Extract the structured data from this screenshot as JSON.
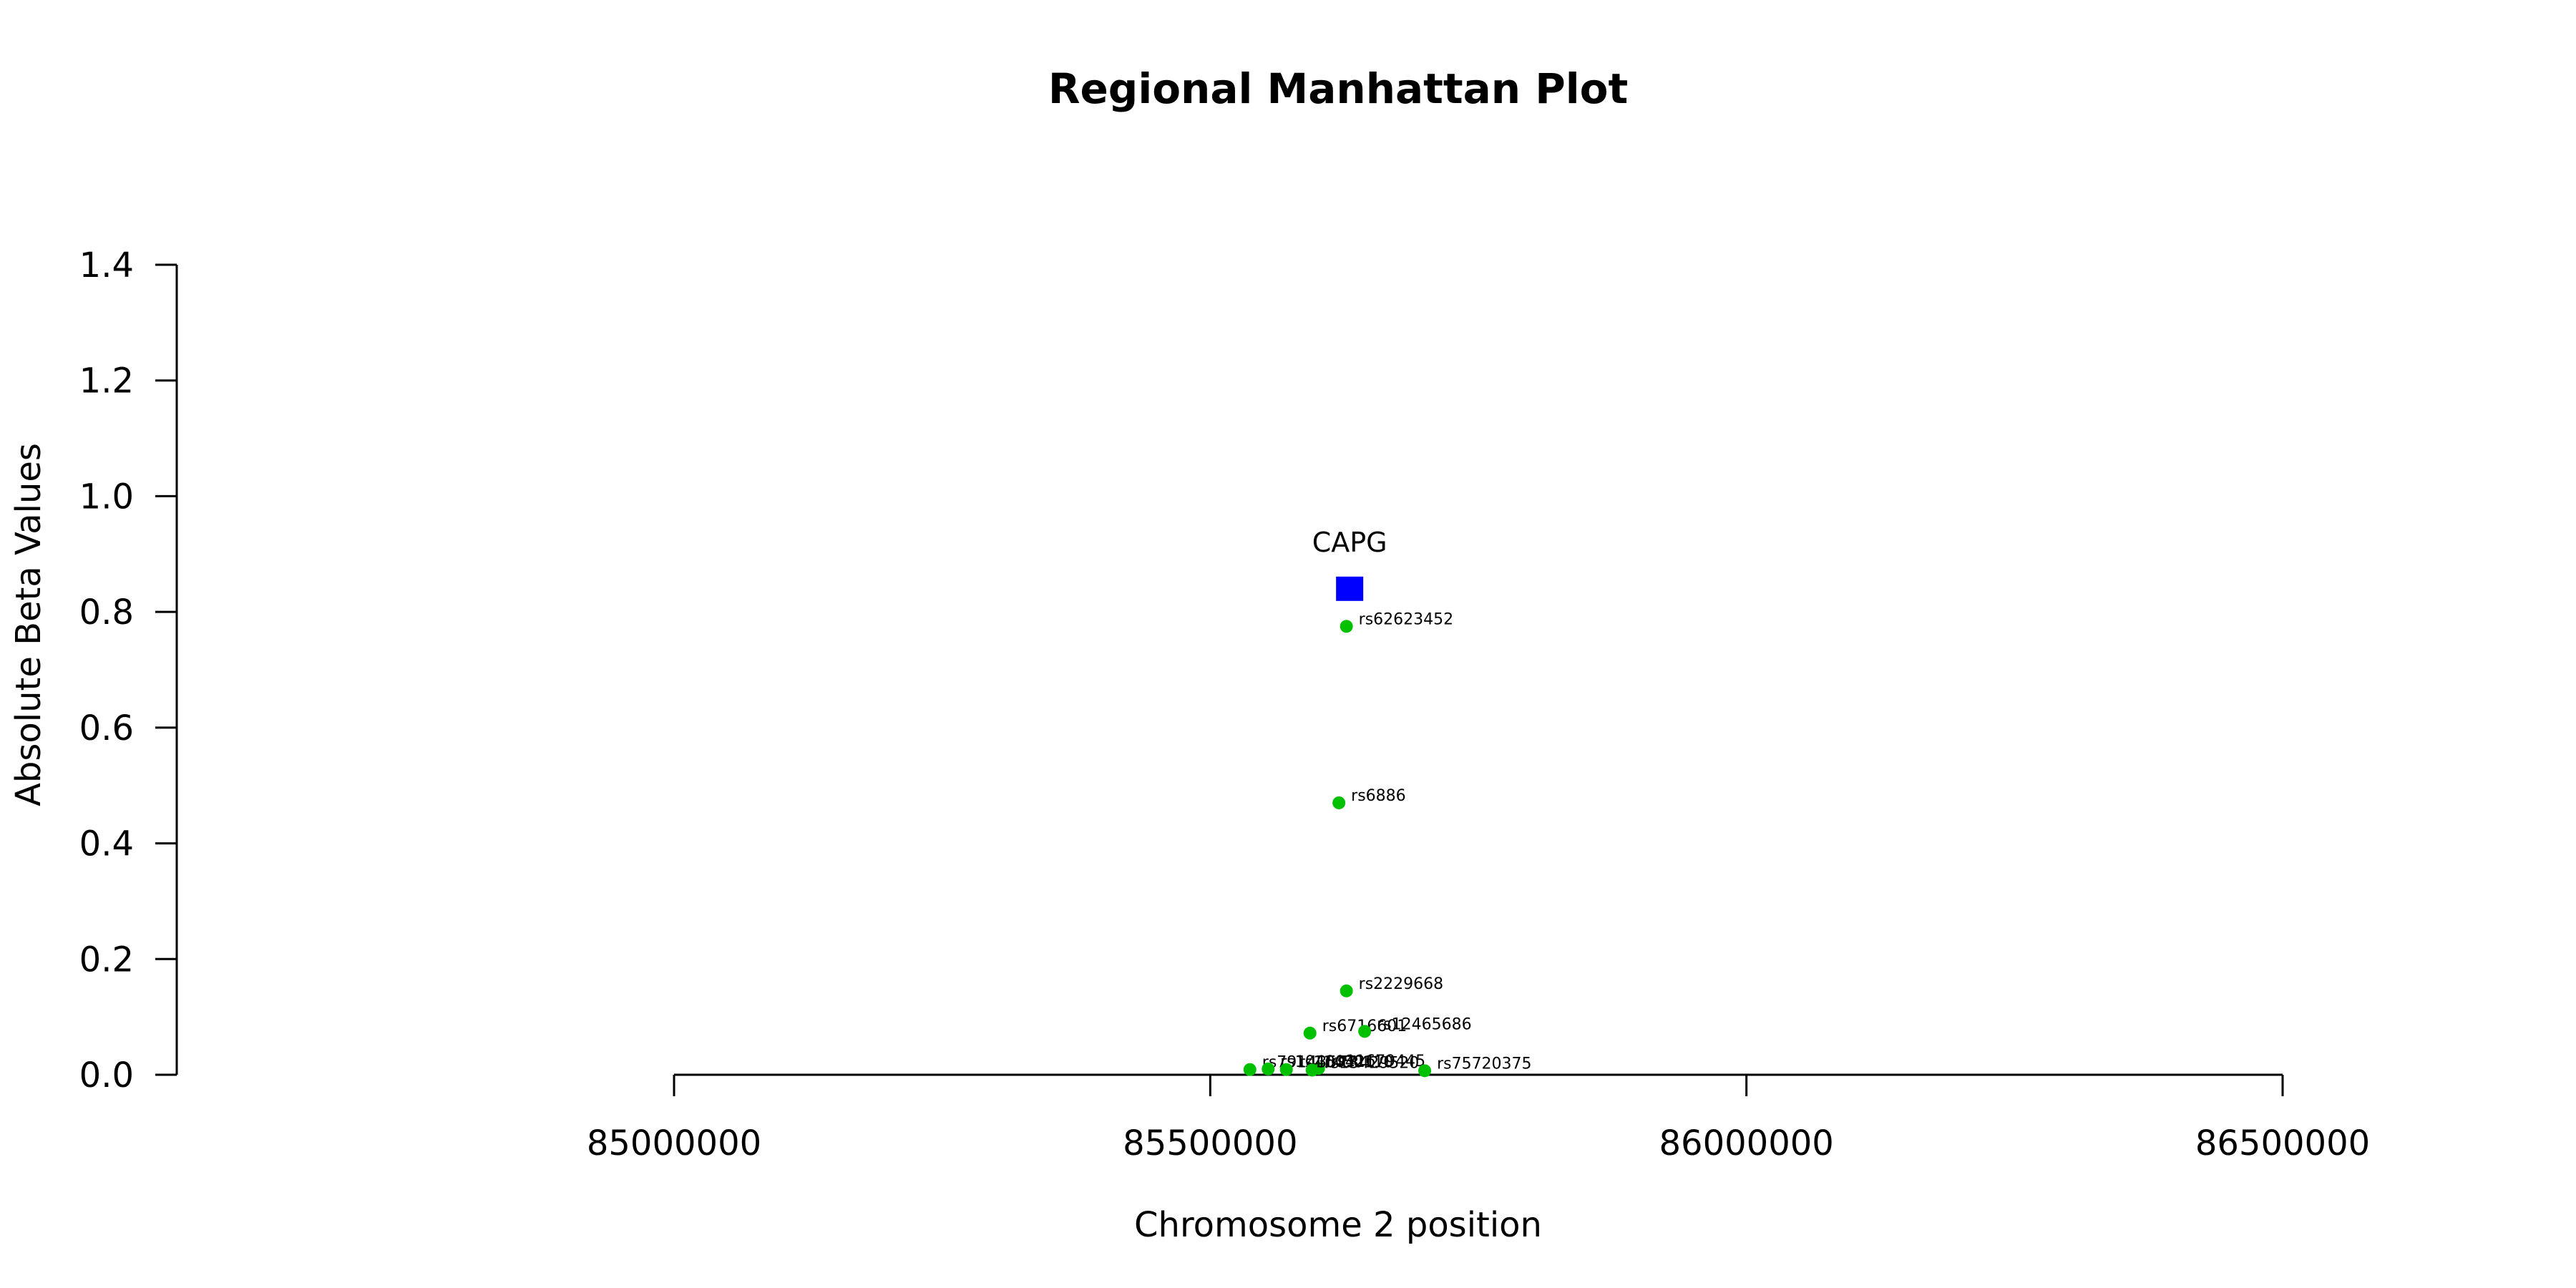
{
  "chart_data": {
    "type": "scatter",
    "title": "Regional Manhattan Plot",
    "xlabel": "Chromosome 2 position",
    "ylabel": "Absolute Beta Values",
    "xlim": [
      85000000,
      86500000
    ],
    "ylim": [
      0,
      1.4
    ],
    "x_ticks": [
      85000000,
      85500000,
      86000000,
      86500000
    ],
    "x_tick_labels": [
      "85000000",
      "85500000",
      "86000000",
      "86500000"
    ],
    "y_ticks": [
      0,
      0.2,
      0.4,
      0.6,
      0.8,
      1.0,
      1.2,
      1.4
    ],
    "y_tick_labels": [
      "0.0",
      "0.2",
      "0.4",
      "0.6",
      "0.8",
      "1.0",
      "1.2",
      "1.4"
    ],
    "grid": false,
    "colors": {
      "snp": "#00c000",
      "gene": "#0000ff"
    },
    "gene": {
      "name": "CAPG",
      "x": 85630000,
      "y": 0.84,
      "marker": "square"
    },
    "snps": [
      {
        "name": "rs62623452",
        "x": 85627000,
        "y": 0.775
      },
      {
        "name": "rs6886",
        "x": 85620000,
        "y": 0.47
      },
      {
        "name": "rs2229668",
        "x": 85627000,
        "y": 0.145
      },
      {
        "name": "rs6716601",
        "x": 85593000,
        "y": 0.072
      },
      {
        "name": "rs12465686",
        "x": 85644000,
        "y": 0.075
      },
      {
        "name": "rs11679445",
        "x": 85601000,
        "y": 0.011
      },
      {
        "name": "rs75720375",
        "x": 85700000,
        "y": 0.007
      },
      {
        "name": "rs79143577",
        "x": 85537000,
        "y": 0.009
      },
      {
        "name": "rs10400421",
        "x": 85554000,
        "y": 0.01
      },
      {
        "name": "rs11450110",
        "x": 85571000,
        "y": 0.009
      },
      {
        "name": "rs13429520",
        "x": 85595000,
        "y": 0.008
      }
    ]
  }
}
